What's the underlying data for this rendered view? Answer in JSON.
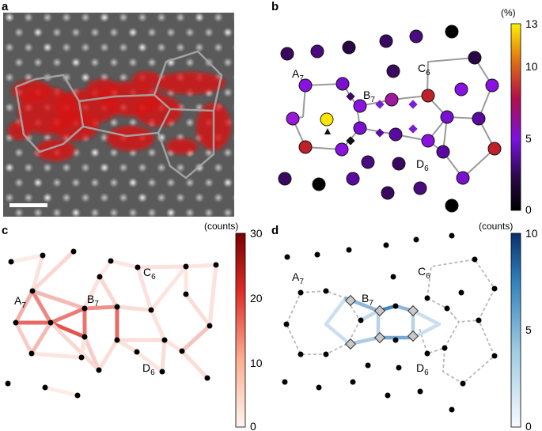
{
  "panels": {
    "a": {
      "letter": "a"
    },
    "b": {
      "letter": "b",
      "colorbar": {
        "unit": "(%)",
        "ticks": [
          "0",
          "5",
          "10",
          "13"
        ],
        "range": [
          0,
          13
        ]
      }
    },
    "c": {
      "letter": "c",
      "colorbar": {
        "unit": "(counts)",
        "ticks": [
          "0",
          "10",
          "20",
          "30"
        ],
        "range": [
          0,
          30
        ]
      }
    },
    "d": {
      "letter": "d",
      "colorbar": {
        "unit": "(counts)",
        "ticks": [
          "0",
          "5",
          "10"
        ],
        "range": [
          0,
          10
        ]
      }
    }
  },
  "site_labels": {
    "A": {
      "main": "A",
      "sub": "7"
    },
    "B": {
      "main": "B",
      "sub": "7"
    },
    "C": {
      "main": "C",
      "sub": "6"
    },
    "D": {
      "main": "D",
      "sub": "6"
    }
  },
  "colors": {
    "ring_edge": "#a8a8a8",
    "bright_marker": "#ffe600",
    "diamond_b": "#7a1fd0",
    "diamond_d": "#c8c8c8",
    "red_max": "#7a0000",
    "blue_max": "#08306b"
  }
}
